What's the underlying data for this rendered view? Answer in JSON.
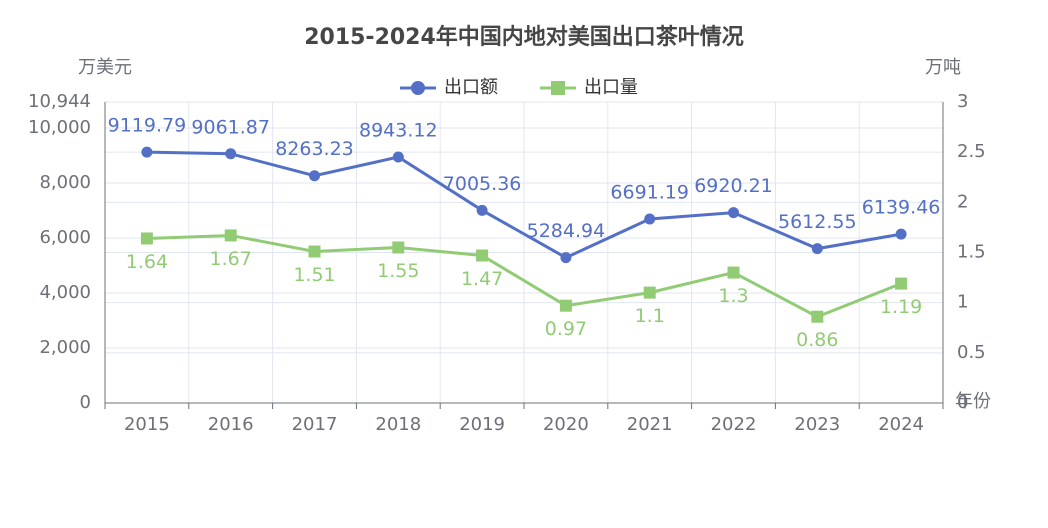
{
  "chart_data": {
    "type": "line",
    "title": "2015-2024年中国内地对美国出口茶叶情况",
    "y_label": "万美元",
    "y2_label": "万吨",
    "x_label": "年份",
    "categories": [
      "2015",
      "2016",
      "2017",
      "2018",
      "2019",
      "2020",
      "2021",
      "2022",
      "2023",
      "2024"
    ],
    "series": [
      {
        "name": "出口额",
        "color": "#5470c6",
        "values": [
          9119.79,
          9061.87,
          8263.23,
          8943.12,
          7005.36,
          5284.94,
          6691.19,
          6920.21,
          5612.55,
          6139.46
        ]
      },
      {
        "name": "出口量",
        "color": "#91cc75",
        "axis": "y2",
        "values": [
          1.64,
          1.67,
          1.51,
          1.55,
          1.47,
          0.97,
          1.1,
          1.3,
          0.86,
          1.19
        ]
      }
    ],
    "ylim": [
      0,
      10944
    ],
    "yticks": [
      0,
      {
        "value": 2000,
        "label": "2,000"
      },
      {
        "value": 4000,
        "label": "4,000"
      },
      {
        "value": 6000,
        "label": "6,000"
      },
      {
        "value": 8000,
        "label": "8,000"
      },
      {
        "value": 10000,
        "label": "10,000"
      },
      {
        "value": 10944,
        "label": "10,944"
      }
    ],
    "y2lim": [
      0,
      3
    ],
    "y2ticks": [
      0,
      0.5,
      1,
      1.5,
      2,
      2.5,
      3
    ],
    "grid": true
  }
}
